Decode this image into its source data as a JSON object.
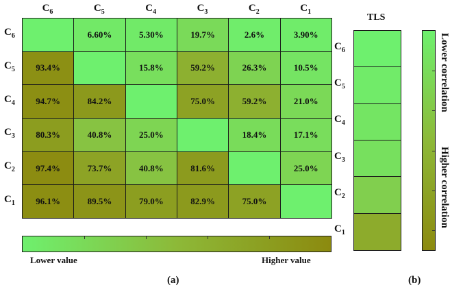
{
  "chart_data": {
    "type": "heatmap",
    "columns": [
      "C6",
      "C5",
      "C4",
      "C3",
      "C2",
      "C1"
    ],
    "rows": [
      "C6",
      "C5",
      "C4",
      "C3",
      "C2",
      "C1"
    ],
    "values": [
      [
        null,
        "6.60%",
        "5.30%",
        "19.7%",
        "2.6%",
        "3.90%"
      ],
      [
        "93.4%",
        null,
        "15.8%",
        "59.2%",
        "26.3%",
        "10.5%"
      ],
      [
        "94.7%",
        "84.2%",
        null,
        "75.0%",
        "59.2%",
        "21.0%"
      ],
      [
        "80.3%",
        "40.8%",
        "25.0%",
        null,
        "18.4%",
        "17.1%"
      ],
      [
        "97.4%",
        "73.7%",
        "40.8%",
        "81.6%",
        null,
        "25.0%"
      ],
      [
        "96.1%",
        "89.5%",
        "79.0%",
        "82.9%",
        "75.0%",
        null
      ]
    ],
    "color_legend": {
      "low": "Lower value",
      "high": "Higher value"
    },
    "panel_a_label": "(a)",
    "tls": {
      "title": "TLS",
      "rows": [
        "C6",
        "C5",
        "C4",
        "C3",
        "C2",
        "C1"
      ],
      "levels": [
        0.0,
        0.05,
        0.1,
        0.15,
        0.3,
        0.65
      ]
    },
    "correlation_legend": {
      "low": "Lower correlation",
      "high": "Higher correlation"
    },
    "panel_b_label": "(b)",
    "colors": {
      "low": "#6ef06e",
      "mid": "#8db938",
      "high": "#8c8a0f"
    }
  }
}
